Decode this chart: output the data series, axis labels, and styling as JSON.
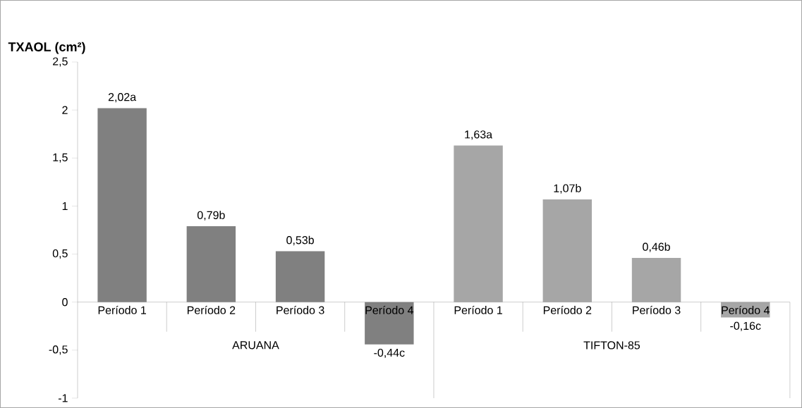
{
  "chart_data": {
    "type": "bar",
    "ylabel": "TXAOL (cm²)",
    "categories": [
      "Período 1",
      "Período 2",
      "Período 3",
      "Período 4",
      "Período 1",
      "Período 2",
      "Período 3",
      "Período 4"
    ],
    "values": [
      2.02,
      0.79,
      0.53,
      -0.44,
      1.63,
      1.07,
      0.46,
      -0.16
    ],
    "value_labels": [
      "2,02a",
      "0,79b",
      "0,53b",
      "-0,44c",
      "1,63a",
      "1,07b",
      "0,46b",
      "-0,16c"
    ],
    "colors": [
      "#808080",
      "#808080",
      "#808080",
      "#808080",
      "#a6a6a6",
      "#a6a6a6",
      "#a6a6a6",
      "#a6a6a6"
    ],
    "annotations": [
      "ARUANA",
      "TIFTON-85"
    ],
    "ylim": [
      -1,
      2.5
    ],
    "yticks": [
      {
        "value": -1,
        "label": "-1"
      },
      {
        "value": -0.5,
        "label": "-0,5"
      },
      {
        "value": 0,
        "label": "0"
      },
      {
        "value": 0.5,
        "label": "0,5"
      },
      {
        "value": 1,
        "label": "1"
      },
      {
        "value": 1.5,
        "label": "1,5"
      },
      {
        "value": 2,
        "label": "2"
      },
      {
        "value": 2.5,
        "label": "2,5"
      }
    ]
  }
}
